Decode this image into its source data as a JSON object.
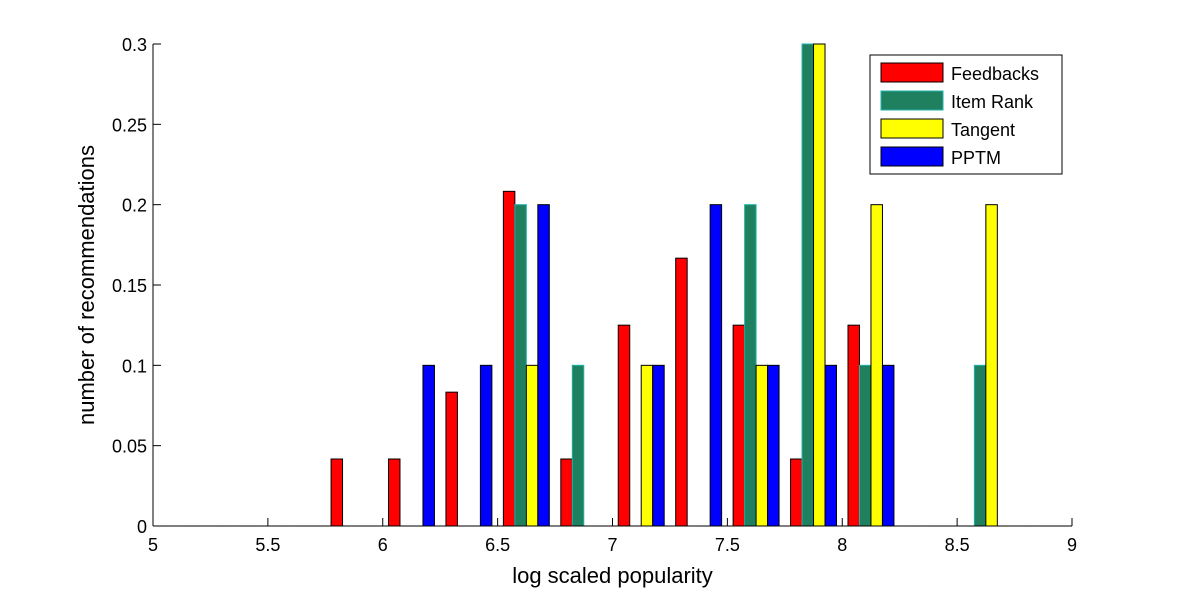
{
  "chart_data": {
    "type": "bar",
    "title": "",
    "xlabel": "log scaled popularity",
    "ylabel": "number of recommendations",
    "xlim": [
      5,
      9
    ],
    "ylim": [
      0,
      0.3
    ],
    "x_ticks": [
      5,
      5.5,
      6,
      6.5,
      7,
      7.5,
      8,
      8.5,
      9
    ],
    "x_tick_labels": [
      "5",
      "5.5",
      "6",
      "6.5",
      "7",
      "7.5",
      "8",
      "8.5",
      "9"
    ],
    "y_ticks": [
      0,
      0.05,
      0.1,
      0.15,
      0.2,
      0.25,
      0.3
    ],
    "y_tick_labels": [
      "0",
      "0.05",
      "0.1",
      "0.15",
      "0.2",
      "0.25",
      "0.3"
    ],
    "grid": false,
    "legend_position": "top-right",
    "bin_centers": [
      5.125,
      5.375,
      5.625,
      5.875,
      6.125,
      6.375,
      6.625,
      6.875,
      7.125,
      7.375,
      7.625,
      7.875,
      8.125,
      8.375,
      8.625,
      8.875
    ],
    "series": [
      {
        "name": "Feedbacks",
        "color": "#ff0000",
        "values": [
          0,
          0,
          0,
          0.0417,
          0.0417,
          0.0833,
          0.2083,
          0.0417,
          0.125,
          0.1667,
          0.125,
          0.0417,
          0.125,
          0,
          0,
          0
        ]
      },
      {
        "name": "Item Rank",
        "color": "#1f8060",
        "edge": "#20b2aa",
        "values": [
          0,
          0,
          0,
          0,
          0,
          0,
          0.2,
          0.1,
          0,
          0,
          0.2,
          0.3,
          0.1,
          0,
          0.1,
          0
        ]
      },
      {
        "name": "Tangent",
        "color": "#ffff00",
        "values": [
          0,
          0,
          0,
          0,
          0,
          0,
          0.1,
          0,
          0.1,
          0,
          0.1,
          0.3,
          0.2,
          0,
          0.2,
          0
        ]
      },
      {
        "name": "PPTM",
        "color": "#0000ff",
        "values": [
          0,
          0,
          0,
          0,
          0.1,
          0.1,
          0.2,
          0,
          0.1,
          0.2,
          0.1,
          0.1,
          0.1,
          0,
          0,
          0
        ]
      }
    ]
  }
}
